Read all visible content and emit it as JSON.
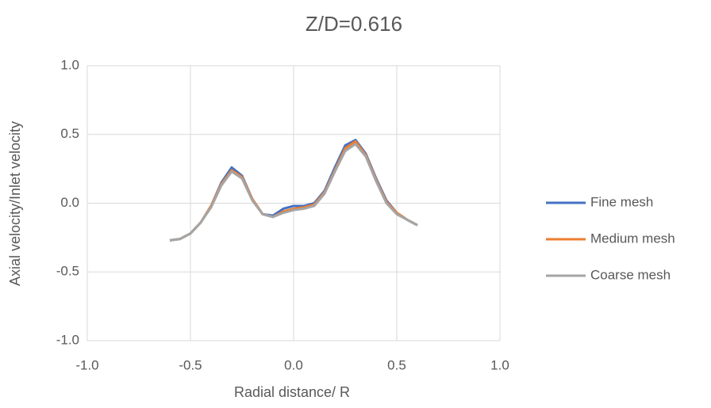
{
  "chart_data": {
    "type": "line",
    "title": "Z/D=0.616",
    "x_label": "Radial distance/ R",
    "y_label": "Axial velocity/Inlet velocity",
    "x": [
      -0.6,
      -0.55,
      -0.5,
      -0.45,
      -0.4,
      -0.35,
      -0.3,
      -0.25,
      -0.2,
      -0.15,
      -0.1,
      -0.05,
      0,
      0.05,
      0.1,
      0.15,
      0.2,
      0.25,
      0.3,
      0.35,
      0.4,
      0.45,
      0.5,
      0.55,
      0.6
    ],
    "series": [
      {
        "name": "Fine mesh",
        "color": "#4472c4",
        "values": [
          -0.27,
          -0.26,
          -0.22,
          -0.14,
          -0.02,
          0.15,
          0.26,
          0.2,
          0.03,
          -0.08,
          -0.09,
          -0.04,
          -0.02,
          -0.02,
          0.0,
          0.09,
          0.26,
          0.42,
          0.46,
          0.36,
          0.18,
          0.02,
          -0.07,
          -0.12,
          -0.16
        ]
      },
      {
        "name": "Medium mesh",
        "color": "#ed7d31",
        "values": [
          -0.27,
          -0.26,
          -0.22,
          -0.14,
          -0.02,
          0.14,
          0.24,
          0.19,
          0.03,
          -0.08,
          -0.1,
          -0.06,
          -0.04,
          -0.03,
          -0.01,
          0.08,
          0.24,
          0.4,
          0.45,
          0.35,
          0.17,
          0.01,
          -0.07,
          -0.12,
          -0.16
        ]
      },
      {
        "name": "Coarse mesh",
        "color": "#a5a5a5",
        "values": [
          -0.27,
          -0.26,
          -0.22,
          -0.14,
          -0.03,
          0.13,
          0.23,
          0.18,
          0.02,
          -0.08,
          -0.1,
          -0.07,
          -0.05,
          -0.04,
          -0.02,
          0.07,
          0.23,
          0.38,
          0.43,
          0.34,
          0.16,
          0.0,
          -0.08,
          -0.12,
          -0.16
        ]
      }
    ],
    "xlim": [
      -1.0,
      1.0
    ],
    "xticks": [
      {
        "value": -1.0,
        "label": "-1.0"
      },
      {
        "value": -0.5,
        "label": "-0.5"
      },
      {
        "value": 0.0,
        "label": "0.0"
      },
      {
        "value": 0.5,
        "label": "0.5"
      },
      {
        "value": 1.0,
        "label": "1.0"
      }
    ],
    "ylim": [
      -1.0,
      1.0
    ],
    "yticks": [
      {
        "value": -1.0,
        "label": "-1.0"
      },
      {
        "value": -0.5,
        "label": "-0.5"
      },
      {
        "value": 0.0,
        "label": "0.0"
      },
      {
        "value": 0.5,
        "label": "0.5"
      },
      {
        "value": 1.0,
        "label": "1.0"
      }
    ],
    "grid": true,
    "legend": "right"
  }
}
